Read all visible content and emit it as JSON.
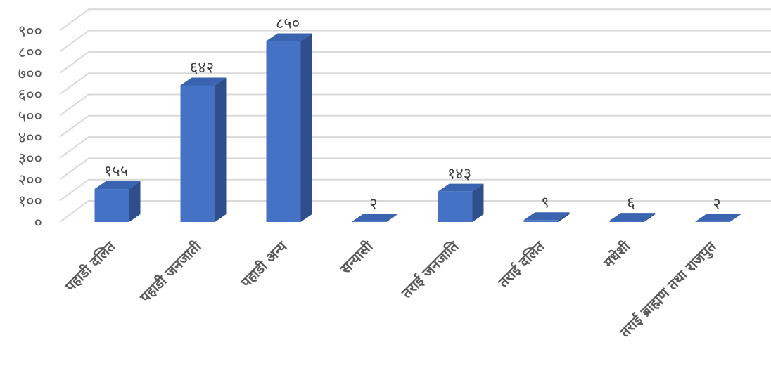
{
  "chart_data": {
    "type": "bar",
    "title": "",
    "xlabel": "",
    "ylabel": "",
    "ylim": [
      0,
      900
    ],
    "yticks": [
      0,
      100,
      200,
      300,
      400,
      500,
      600,
      700,
      800,
      900
    ],
    "ytick_labels": [
      "०",
      "१००",
      "२००",
      "३००",
      "४००",
      "५००",
      "६००",
      "७००",
      "८००",
      "९००"
    ],
    "categories": [
      "पहाडी दलित",
      "पहाडी जनजाती",
      "पहाडी अन्य",
      "सन्यासी",
      "तराई जनजाति",
      "तराई दलित",
      "मधेशी",
      "तराई ब्राह्मण तथा राजपुत"
    ],
    "values": [
      155,
      642,
      850,
      2,
      143,
      9,
      6,
      2
    ],
    "data_labels": [
      "१५५",
      "६४२",
      "८५०",
      "२",
      "१४३",
      "९",
      "६",
      "२"
    ],
    "grid": true,
    "legend": "none",
    "colors": {
      "bar_front": "#4472C4",
      "bar_side": "#2E4E8C",
      "bar_top": "#3A63B0",
      "grid": "#D9D9D9"
    }
  }
}
